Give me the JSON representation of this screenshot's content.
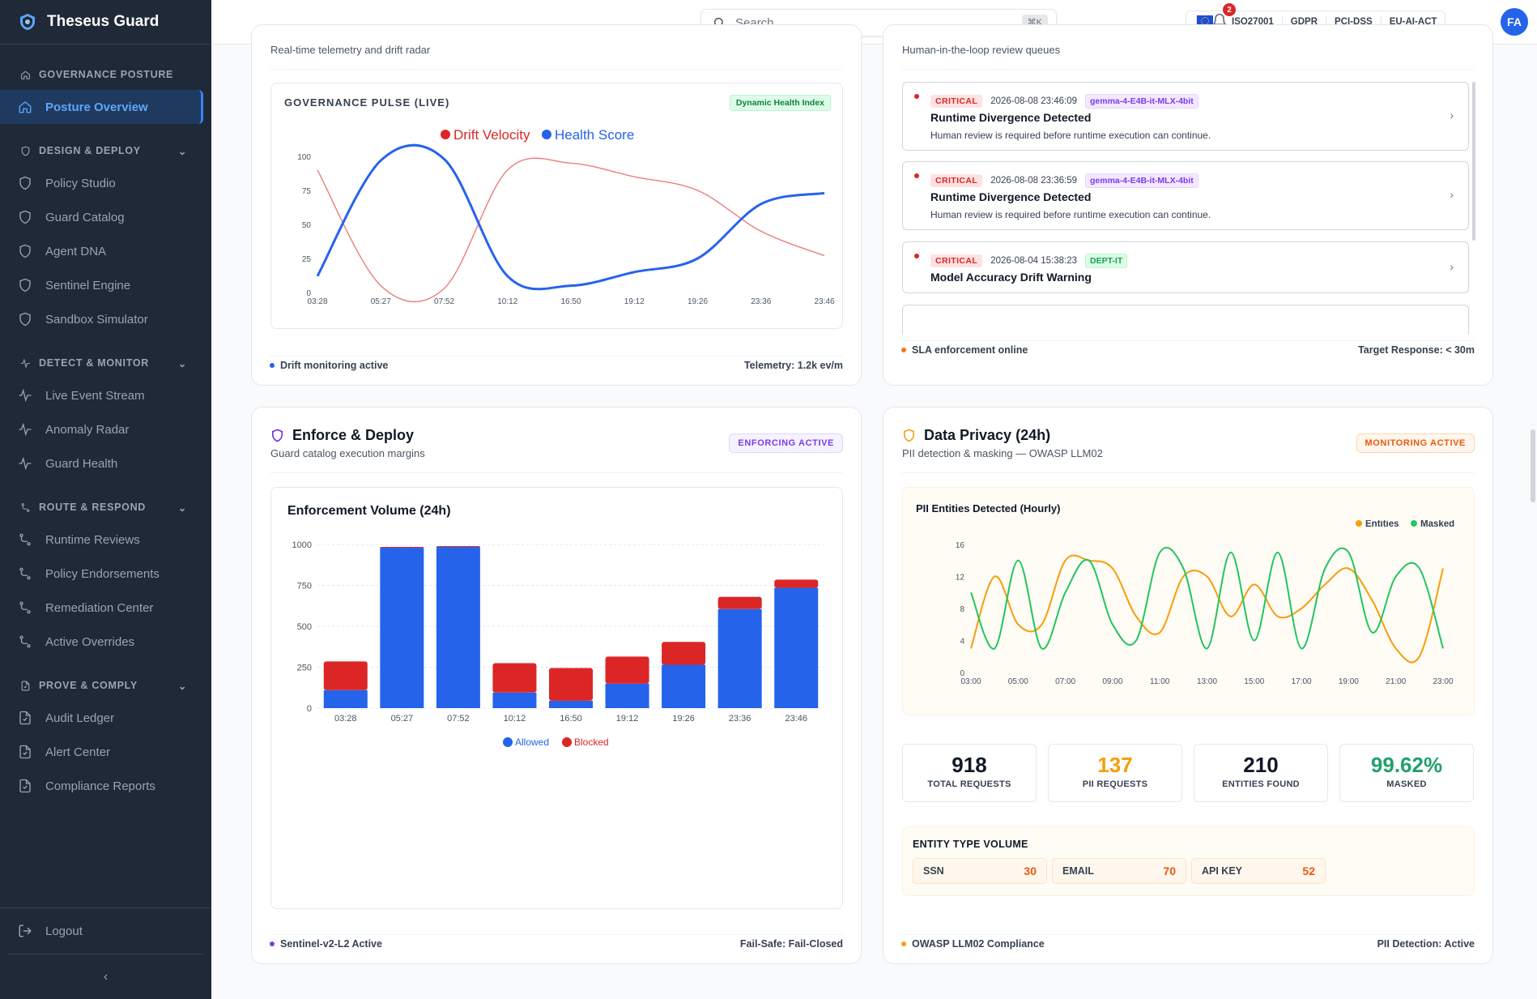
{
  "brand": {
    "name": "Theseus Guard"
  },
  "sidebar": {
    "sections": [
      {
        "label": "GOVERNANCE POSTURE",
        "items": [
          {
            "label": "Posture Overview"
          }
        ]
      },
      {
        "label": "DESIGN & DEPLOY",
        "items": [
          {
            "label": "Policy Studio"
          },
          {
            "label": "Guard Catalog"
          },
          {
            "label": "Agent DNA"
          },
          {
            "label": "Sentinel Engine"
          },
          {
            "label": "Sandbox Simulator"
          }
        ]
      },
      {
        "label": "DETECT & MONITOR",
        "items": [
          {
            "label": "Live Event Stream"
          },
          {
            "label": "Anomaly Radar"
          },
          {
            "label": "Guard Health"
          }
        ]
      },
      {
        "label": "ROUTE & RESPOND",
        "items": [
          {
            "label": "Runtime Reviews"
          },
          {
            "label": "Policy Endorsements"
          },
          {
            "label": "Remediation Center"
          },
          {
            "label": "Active Overrides"
          }
        ]
      },
      {
        "label": "PROVE & COMPLY",
        "items": [
          {
            "label": "Audit Ledger"
          },
          {
            "label": "Alert Center"
          },
          {
            "label": "Compliance Reports"
          }
        ]
      }
    ],
    "logout": "Logout"
  },
  "topbar": {
    "search_placeholder": "Search...",
    "shortcut": "⌘K",
    "compliance": [
      "ISO27001",
      "GDPR",
      "PCI-DSS",
      "EU-AI-ACT"
    ],
    "notifications": "2",
    "avatar": "FA"
  },
  "pulse_card": {
    "subtitle": "Real-time telemetry and drift radar",
    "chart_title": "GOVERNANCE PULSE (LIVE)",
    "badge": "Dynamic Health Index",
    "footer_left": "Drift monitoring active",
    "footer_right": "Telemetry: 1.2k ev/m",
    "colors": {
      "drift": "#dc2626",
      "health": "#2563eb"
    }
  },
  "reviews_card": {
    "subtitle": "Human-in-the-loop review queues",
    "items": [
      {
        "severity": "CRITICAL",
        "time": "2026-08-08 23:46:09",
        "tag": "gemma-4-E4B-it-MLX-4bit",
        "title": "Runtime Divergence Detected",
        "desc": "Human review is required before runtime execution can continue."
      },
      {
        "severity": "CRITICAL",
        "time": "2026-08-08 23:36:59",
        "tag": "gemma-4-E4B-it-MLX-4bit",
        "title": "Runtime Divergence Detected",
        "desc": "Human review is required before runtime execution can continue."
      },
      {
        "severity": "CRITICAL",
        "time": "2026-08-04 15:38:23",
        "tag": "DEPT-IT",
        "title": "Model Accuracy Drift Warning",
        "desc": ""
      }
    ],
    "footer_left": "SLA enforcement online",
    "footer_right": "Target Response: < 30m"
  },
  "enforce_card": {
    "title": "Enforce & Deploy",
    "subtitle": "Guard catalog execution margins",
    "badge": "ENFORCING ACTIVE",
    "chart_title": "Enforcement Volume (24h)",
    "footer_left": "Sentinel-v2-L2 Active",
    "footer_right": "Fail-Safe: Fail-Closed"
  },
  "privacy_card": {
    "title": "Data Privacy (24h)",
    "subtitle": "PII detection & masking — OWASP LLM02",
    "badge": "MONITORING ACTIVE",
    "chart_title": "PII Entities Detected (Hourly)",
    "stats": [
      {
        "value": "918",
        "label": "TOTAL REQUESTS",
        "color": "#111827"
      },
      {
        "value": "137",
        "label": "PII REQUESTS",
        "color": "#f59e0b"
      },
      {
        "value": "210",
        "label": "ENTITIES FOUND",
        "color": "#111827"
      },
      {
        "value": "99.62%",
        "label": "MASKED",
        "color": "#22a06b"
      }
    ],
    "entity_title": "ENTITY TYPE VOLUME",
    "entities": [
      {
        "name": "SSN",
        "count": "30"
      },
      {
        "name": "EMAIL",
        "count": "70"
      },
      {
        "name": "API KEY",
        "count": "52"
      }
    ],
    "footer_left": "OWASP LLM02 Compliance",
    "footer_right": "PII Detection: Active"
  },
  "chart_data": [
    {
      "type": "line",
      "title": "GOVERNANCE PULSE (LIVE)",
      "x": [
        "03:28",
        "05:27",
        "07:52",
        "10:12",
        "16:50",
        "19:12",
        "19:26",
        "23:36",
        "23:46"
      ],
      "ylim": [
        0,
        100
      ],
      "yticks": [
        0,
        25,
        50,
        75,
        100
      ],
      "legend": "top-center",
      "series": [
        {
          "name": "Drift Velocity",
          "color": "#dc2626",
          "values": [
            90,
            5,
            3,
            90,
            95,
            85,
            75,
            45,
            27
          ]
        },
        {
          "name": "Health Score",
          "color": "#2563eb",
          "values": [
            12,
            97,
            98,
            12,
            5,
            15,
            25,
            65,
            73
          ]
        }
      ]
    },
    {
      "type": "bar",
      "title": "Enforcement Volume (24h)",
      "categories": [
        "03:28",
        "05:27",
        "07:52",
        "10:12",
        "16:50",
        "19:12",
        "19:26",
        "23:36",
        "23:46"
      ],
      "ylim": [
        0,
        1000
      ],
      "yticks": [
        0,
        250,
        500,
        750,
        1000
      ],
      "stacked": true,
      "legend": "bottom",
      "series": [
        {
          "name": "Allowed",
          "color": "#2563eb",
          "values": [
            110,
            980,
            985,
            95,
            45,
            150,
            265,
            605,
            735
          ]
        },
        {
          "name": "Blocked",
          "color": "#dc2626",
          "values": [
            175,
            5,
            5,
            180,
            200,
            165,
            140,
            75,
            50
          ]
        }
      ]
    },
    {
      "type": "line",
      "title": "PII Entities Detected (Hourly)",
      "x": [
        "03:00",
        "04:00",
        "05:00",
        "06:00",
        "07:00",
        "08:00",
        "09:00",
        "10:00",
        "11:00",
        "12:00",
        "13:00",
        "14:00",
        "15:00",
        "16:00",
        "17:00",
        "18:00",
        "19:00",
        "20:00",
        "21:00",
        "22:00",
        "23:00"
      ],
      "xticks": [
        "03:00",
        "05:00",
        "07:00",
        "09:00",
        "11:00",
        "13:00",
        "15:00",
        "17:00",
        "19:00",
        "21:00",
        "23:00"
      ],
      "ylim": [
        0,
        16
      ],
      "yticks": [
        0,
        4,
        8,
        12,
        16
      ],
      "legend": "top-right",
      "series": [
        {
          "name": "Entities",
          "color": "#f59e0b",
          "values": [
            3,
            12,
            6,
            6,
            14,
            14,
            13,
            7,
            5,
            12,
            12,
            7,
            11,
            7,
            8,
            11,
            13,
            9,
            3,
            2,
            13
          ]
        },
        {
          "name": "Masked",
          "color": "#22c55e",
          "values": [
            10,
            3,
            14,
            3,
            10,
            14,
            6,
            4,
            15,
            13,
            3,
            15,
            4,
            15,
            3,
            13,
            15,
            5,
            12,
            13,
            3
          ]
        }
      ]
    }
  ]
}
